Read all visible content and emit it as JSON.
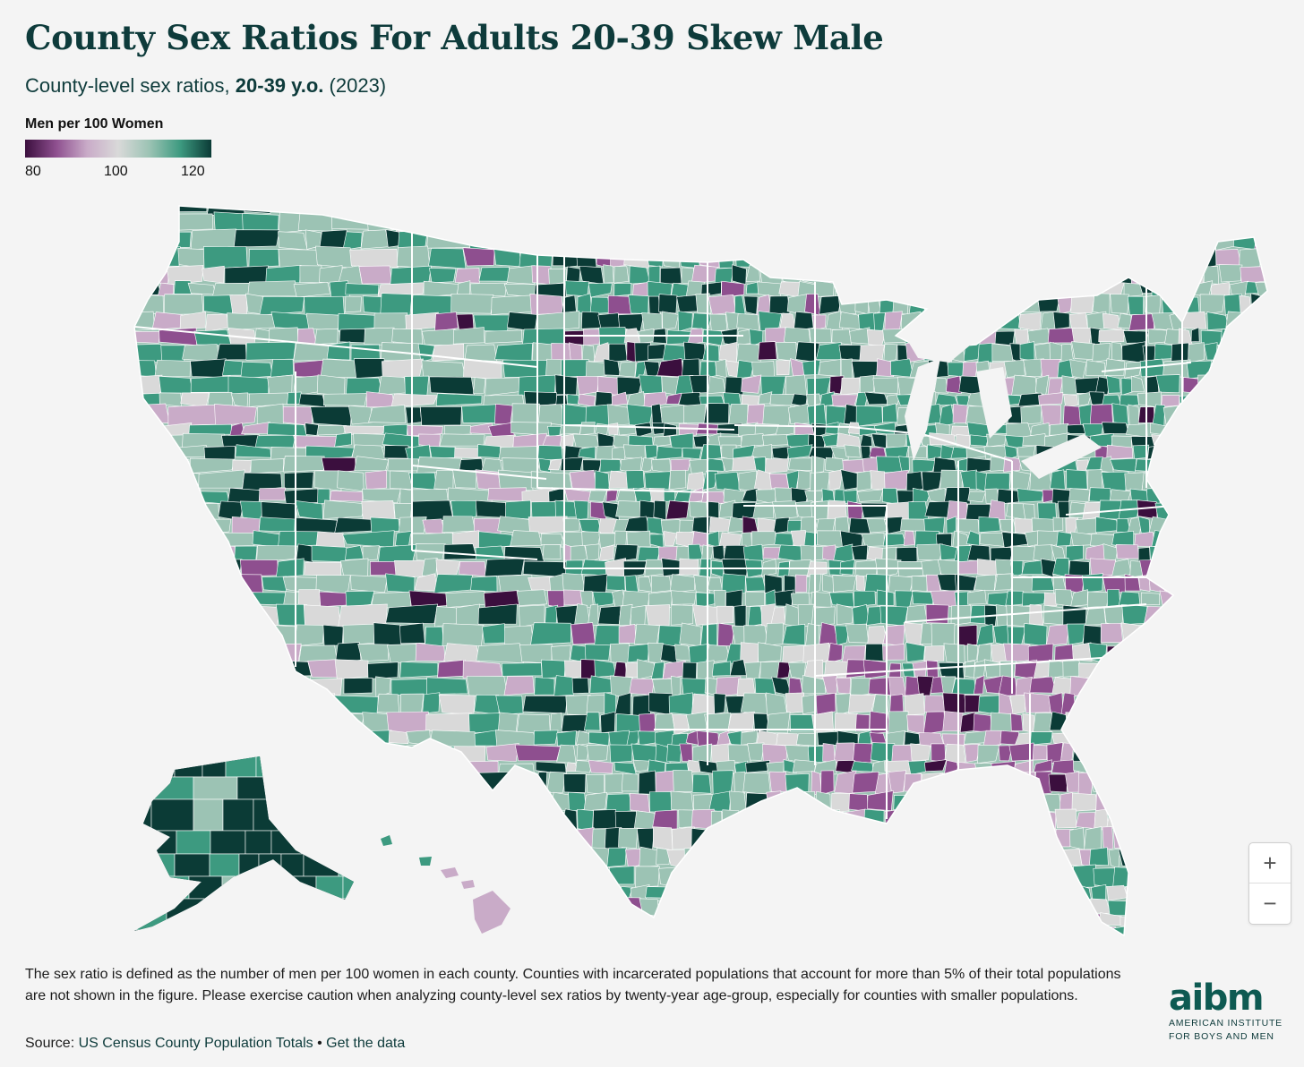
{
  "header": {
    "title": "County Sex Ratios For Adults 20-39 Skew Male",
    "subtitle_prefix": "County-level sex ratios, ",
    "subtitle_bold": "20-39 y.o.",
    "subtitle_suffix": " (2023)"
  },
  "legend": {
    "title": "Men per 100 Women",
    "min": 80,
    "mid": 100,
    "max": 120,
    "tick_labels": [
      "80",
      "100",
      "120"
    ],
    "colors": [
      "#3b0f3e",
      "#8e4f8f",
      "#c9abc8",
      "#d9d9d9",
      "#9cc3b4",
      "#3d9a80",
      "#0b3b36"
    ]
  },
  "map": {
    "type": "choropleth",
    "geography": "US counties (contiguous US, Alaska, Hawaii)",
    "regions": [
      {
        "name": "Alaska",
        "value_range": "110-120+"
      },
      {
        "name": "Hawaii",
        "value_range": "95-100"
      },
      {
        "name": "Deep South (Mississippi, Alabama, Georgia)",
        "value_range": "85-95"
      },
      {
        "name": "North Dakota",
        "value_range": "110-120+"
      }
    ]
  },
  "controls": {
    "zoom_in": "+",
    "zoom_out": "−"
  },
  "footer": {
    "note": "The sex ratio is defined as the number of men per 100 women in each county. Counties with incarcerated populations that account for more than 5% of their total populations are not shown in the figure. Please exercise caution when analyzing county-level sex ratios by twenty-year age-group, especially for counties with smaller populations.",
    "source_label": "Source: ",
    "source_link": "US Census County Population Totals",
    "separator": " • ",
    "data_link": "Get the data"
  },
  "logo": {
    "mark": "aibm",
    "line1": "AMERICAN INSTITUTE",
    "line2": "FOR BOYS AND MEN"
  }
}
